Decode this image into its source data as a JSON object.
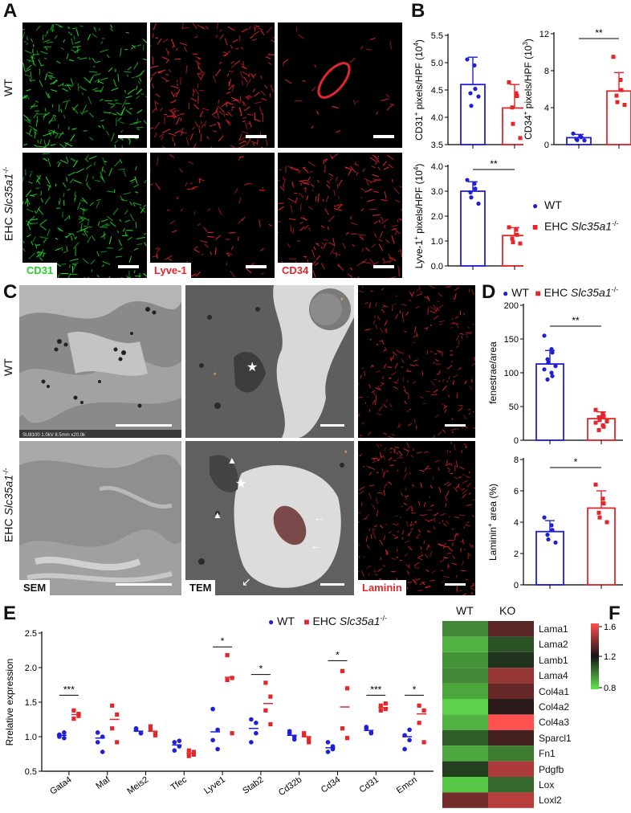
{
  "panels": {
    "A": "A",
    "B": "B",
    "C": "C",
    "D": "D",
    "E": "E",
    "F": "F"
  },
  "colors": {
    "wt": "#1f1fd6",
    "ko": "#e3262b",
    "green": "#22d32a",
    "red": "#e3262b"
  },
  "panelA": {
    "row_labels": {
      "wt": "WT",
      "ko_prefix": "EHC ",
      "ko_gene": "Slc35a1",
      "ko_sup": "-/-"
    },
    "stain_labels": [
      "CD31",
      "Lyve-1",
      "CD34"
    ]
  },
  "panelC": {
    "row_labels": {
      "wt": "WT",
      "ko_prefix": "EHC ",
      "ko_gene": "Slc35a1",
      "ko_sup": "-/-"
    },
    "method_labels": [
      "SEM",
      "TEM",
      "Laminin"
    ],
    "sem_footer": "SU8100 1.0kV 8.5mm x20.0k"
  },
  "legend": {
    "wt": "WT",
    "ko_prefix": "EHC ",
    "ko_gene": "Slc35a1",
    "ko_sup": "-/-"
  },
  "significance": {
    "cd34": "**",
    "lyve1": "**",
    "fenestrae": "**",
    "laminin": "*"
  },
  "chart_data": [
    {
      "id": "B-CD31",
      "type": "bar",
      "categories": [
        "WT",
        "EHC Slc35a1-/-"
      ],
      "ylabel_main": "CD31",
      "ylabel_sup": "+",
      "ylabel_rest": " pixels/HPF (10",
      "ylabel_exp": "4",
      "ylabel_end": ")",
      "ylim": [
        3.5,
        5.5
      ],
      "yticks": [
        "3.5",
        "4.0",
        "4.5",
        "5.0",
        "5.5"
      ],
      "means": [
        4.6,
        4.17
      ],
      "sd": [
        0.5,
        0.43
      ],
      "points": [
        [
          5.06,
          4.95,
          4.52,
          4.44,
          4.21,
          4.38
        ],
        [
          4.64,
          4.44,
          4.39,
          4.18,
          3.88,
          3.62
        ]
      ]
    },
    {
      "id": "B-CD34",
      "type": "bar",
      "categories": [
        "WT",
        "EHC Slc35a1-/-"
      ],
      "ylabel_main": "CD34",
      "ylabel_sup": "+",
      "ylabel_rest": " pixels/HPF (10",
      "ylabel_exp": "3",
      "ylabel_end": ")",
      "ylim": [
        0,
        12
      ],
      "yticks": [
        "0",
        "4",
        "8",
        "12"
      ],
      "means": [
        0.75,
        5.8
      ],
      "sd": [
        0.35,
        2.0
      ],
      "points": [
        [
          1.2,
          0.95,
          0.8,
          0.6,
          0.5,
          0.45
        ],
        [
          9.5,
          7.0,
          5.9,
          5.3,
          4.6,
          4.3
        ]
      ]
    },
    {
      "id": "B-Lyve1",
      "type": "bar",
      "categories": [
        "WT",
        "EHC Slc35a1-/-"
      ],
      "ylabel_main": "Lyve-1",
      "ylabel_sup": "+",
      "ylabel_rest": " pixels/HPF (10",
      "ylabel_exp": "4",
      "ylabel_end": ")",
      "ylim": [
        0,
        4.0
      ],
      "yticks": [
        "0.0",
        "1.0",
        "2.0",
        "3.0",
        "4.0"
      ],
      "means": [
        3.0,
        1.22
      ],
      "sd": [
        0.38,
        0.32
      ],
      "points": [
        [
          3.45,
          3.3,
          3.1,
          2.95,
          2.75,
          2.5
        ],
        [
          1.55,
          1.45,
          1.25,
          1.1,
          0.95,
          0.9
        ]
      ]
    },
    {
      "id": "D-fenestrae",
      "type": "bar",
      "categories": [
        "WT",
        "EHC Slc35a1-/-"
      ],
      "ylabel": "fenestrae/area",
      "ylim": [
        0,
        200
      ],
      "yticks": [
        "0",
        "50",
        "100",
        "150",
        "200"
      ],
      "means": [
        113,
        32
      ],
      "sd": [
        20,
        10
      ],
      "points": [
        [
          155,
          135,
          130,
          120,
          115,
          110,
          105,
          100,
          95,
          90
        ],
        [
          45,
          40,
          36,
          34,
          30,
          28,
          26,
          22,
          20,
          15
        ]
      ]
    },
    {
      "id": "D-laminin",
      "type": "bar",
      "categories": [
        "WT",
        "EHC Slc35a1-/-"
      ],
      "ylabel_main": "Laminin",
      "ylabel_sup": "+",
      "ylabel_rest": " area (%)",
      "ylim": [
        0,
        8
      ],
      "yticks": [
        "0",
        "2",
        "4",
        "6",
        "8"
      ],
      "means": [
        3.4,
        4.9
      ],
      "sd": [
        0.7,
        1.1
      ],
      "points": [
        [
          4.3,
          3.8,
          3.5,
          3.2,
          2.9,
          2.7
        ],
        [
          6.4,
          5.5,
          5.2,
          4.6,
          4.3,
          4.0
        ]
      ]
    },
    {
      "id": "E",
      "type": "scatter",
      "ylabel": "Rrelative expression",
      "ylim": [
        0.5,
        2.5
      ],
      "yticks": [
        "0.5",
        "1.0",
        "1.5",
        "2.0",
        "2.5"
      ],
      "categories": [
        "Gata4",
        "Maf",
        "Meis2",
        "Tfec",
        "Lyve1",
        "Stab2",
        "Cd32b",
        "Cd34",
        "Cd31",
        "Emcn"
      ],
      "wt_mean": [
        1.02,
        0.98,
        1.08,
        0.88,
        1.07,
        1.12,
        1.02,
        0.84,
        1.09,
        1.0
      ],
      "ko_mean": [
        1.32,
        1.25,
        1.08,
        0.76,
        1.86,
        1.48,
        1.0,
        1.43,
        1.42,
        1.33
      ],
      "wt_points": [
        [
          1.0,
          1.06,
          1.03,
          0.98
        ],
        [
          1.06,
          1.0,
          0.92,
          0.78
        ],
        [
          1.1,
          1.05,
          1.12,
          1.05
        ],
        [
          0.92,
          0.86,
          0.8,
          0.94
        ],
        [
          1.4,
          1.1,
          0.95,
          0.82
        ],
        [
          1.25,
          1.05,
          0.92,
          1.2
        ],
        [
          1.05,
          0.96,
          1.08,
          1.0
        ],
        [
          0.92,
          0.82,
          0.78,
          0.86
        ],
        [
          1.12,
          1.06,
          1.14,
          1.05
        ],
        [
          1.02,
          0.95,
          0.82,
          1.1
        ]
      ],
      "ko_points": [
        [
          1.38,
          1.3,
          1.26,
          1.33
        ],
        [
          1.45,
          1.32,
          1.12,
          0.92
        ],
        [
          1.15,
          1.04,
          1.1,
          1.02
        ],
        [
          0.8,
          0.74,
          0.72,
          0.78
        ],
        [
          2.18,
          1.85,
          1.82,
          1.05
        ],
        [
          1.78,
          1.58,
          1.38,
          1.18
        ],
        [
          1.05,
          0.97,
          1.02,
          0.92
        ],
        [
          1.95,
          1.7,
          1.12,
          0.98
        ],
        [
          1.45,
          1.4,
          1.38,
          1.48
        ],
        [
          1.45,
          1.38,
          1.2,
          0.92
        ]
      ],
      "significance": [
        {
          "cat": "Gata4",
          "label": "***",
          "y": 1.6
        },
        {
          "cat": "Lyve1",
          "label": "*",
          "y": 2.3
        },
        {
          "cat": "Stab2",
          "label": "*",
          "y": 1.9
        },
        {
          "cat": "Cd34",
          "label": "*",
          "y": 2.1
        },
        {
          "cat": "Cd31",
          "label": "***",
          "y": 1.6
        },
        {
          "cat": "Emcn",
          "label": "*",
          "y": 1.6
        }
      ]
    },
    {
      "id": "F",
      "type": "heatmap",
      "columns": [
        "WT",
        "KO"
      ],
      "rows": [
        "Lama1",
        "Lama2",
        "Lamb1",
        "Lama4",
        "Col4a1",
        "Col4a2",
        "Col4a3",
        "Sparcl1",
        "Fn1",
        "Pdgfb",
        "Lox",
        "Loxl2"
      ],
      "colorbar_ticks": [
        "1.6",
        "1.2",
        "0.8"
      ],
      "value_range": [
        0.8,
        1.6
      ],
      "values": [
        [
          0.98,
          1.32
        ],
        [
          0.9,
          1.08
        ],
        [
          0.96,
          1.14
        ],
        [
          0.98,
          1.42
        ],
        [
          0.92,
          1.34
        ],
        [
          0.84,
          1.24
        ],
        [
          0.9,
          1.6
        ],
        [
          1.06,
          1.28
        ],
        [
          0.92,
          1.0
        ],
        [
          1.12,
          1.46
        ],
        [
          0.86,
          1.04
        ],
        [
          1.36,
          1.48
        ]
      ]
    }
  ]
}
